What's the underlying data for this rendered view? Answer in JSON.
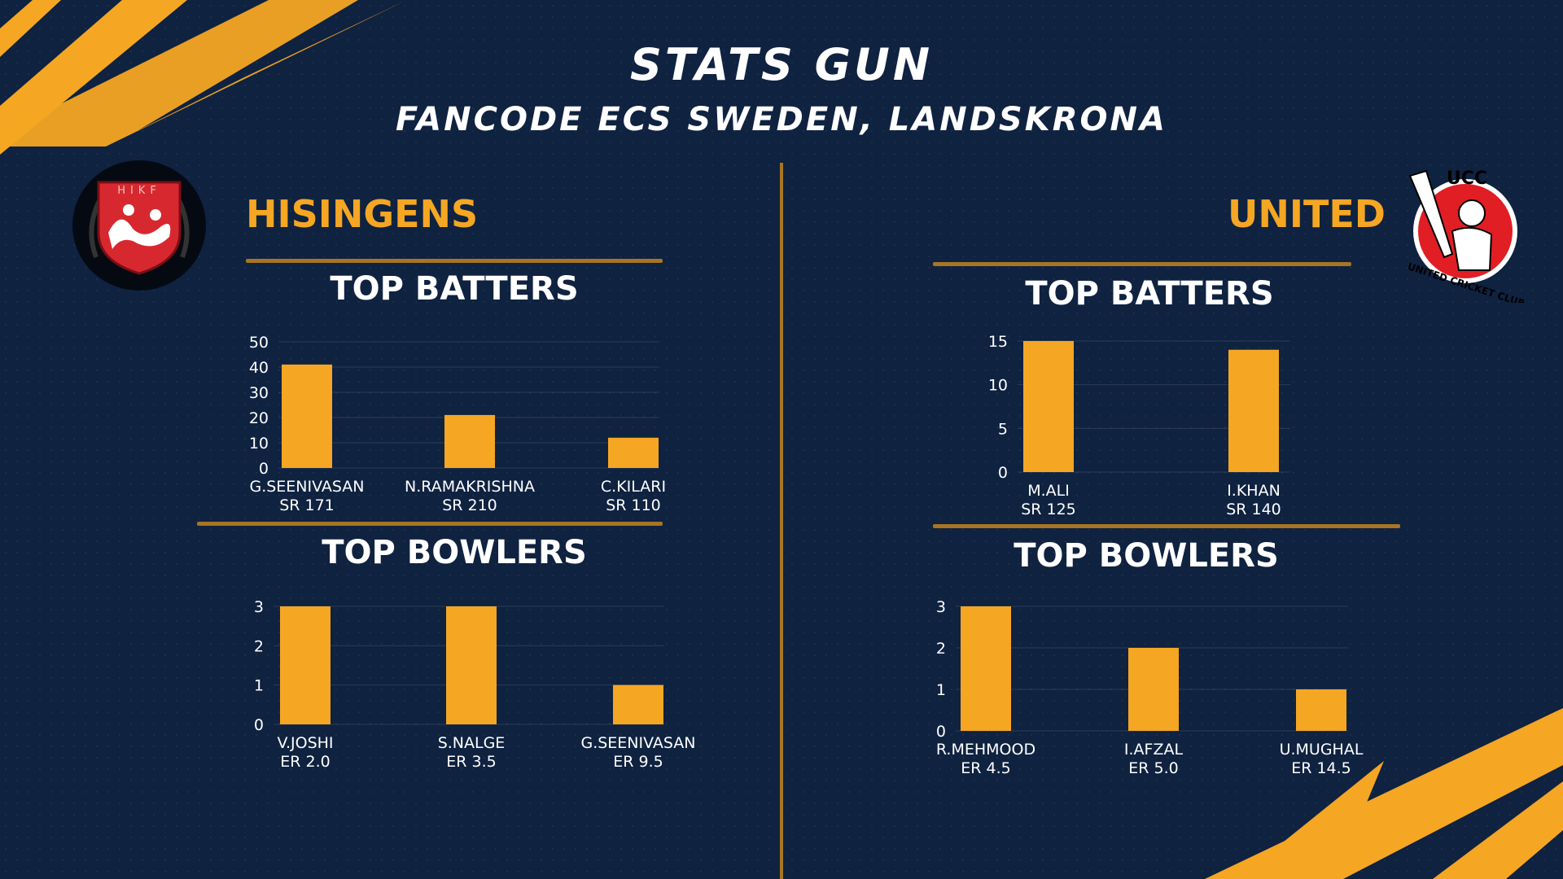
{
  "header": {
    "title": "STATS GUN",
    "subtitle": "FANCODE ECS SWEDEN, LANDSKRONA"
  },
  "colors": {
    "background": "#0f2240",
    "accent": "#f5a623",
    "divider": "#a87522"
  },
  "left_team": {
    "name": "HISINGENS",
    "logo_text": "HIKF",
    "batters_title": "TOP BATTERS",
    "bowlers_title": "TOP BOWLERS"
  },
  "right_team": {
    "name": "UNITED",
    "logo_text": "UCC",
    "logo_ring_text": "UNITED CRICKET CLUB",
    "batters_title": "TOP BATTERS",
    "bowlers_title": "TOP BOWLERS"
  },
  "chart_data": [
    {
      "type": "bar",
      "team": "HISINGENS",
      "title": "TOP BATTERS",
      "categories": [
        "G.SEENIVASAN",
        "N.RAMAKRISHNA",
        "C.KILARI"
      ],
      "sublabels": [
        "SR 171",
        "SR 210",
        "SR 110"
      ],
      "values": [
        41,
        21,
        12
      ],
      "ylim": [
        0,
        50
      ],
      "yticks": [
        0,
        10,
        20,
        30,
        40,
        50
      ],
      "grid": true,
      "color": "#f5a623"
    },
    {
      "type": "bar",
      "team": "HISINGENS",
      "title": "TOP BOWLERS",
      "categories": [
        "V.JOSHI",
        "S.NALGE",
        "G.SEENIVASAN"
      ],
      "sublabels": [
        "ER 2.0",
        "ER 3.5",
        "ER 9.5"
      ],
      "values": [
        3,
        3,
        1
      ],
      "ylim": [
        0,
        3
      ],
      "yticks": [
        0,
        1,
        2,
        3
      ],
      "grid": true,
      "color": "#f5a623"
    },
    {
      "type": "bar",
      "team": "UNITED",
      "title": "TOP BATTERS",
      "categories": [
        "M.ALI",
        "I.KHAN"
      ],
      "sublabels": [
        "SR 125",
        "SR 140"
      ],
      "values": [
        15,
        14
      ],
      "ylim": [
        0,
        15
      ],
      "yticks": [
        0,
        5,
        10,
        15
      ],
      "grid": true,
      "color": "#f5a623"
    },
    {
      "type": "bar",
      "team": "UNITED",
      "title": "TOP BOWLERS",
      "categories": [
        "R.MEHMOOD",
        "I.AFZAL",
        "U.MUGHAL"
      ],
      "sublabels": [
        "ER 4.5",
        "ER 5.0",
        "ER 14.5"
      ],
      "values": [
        3,
        2,
        1
      ],
      "ylim": [
        0,
        3
      ],
      "yticks": [
        0,
        1,
        2,
        3
      ],
      "grid": true,
      "color": "#f5a623"
    }
  ]
}
